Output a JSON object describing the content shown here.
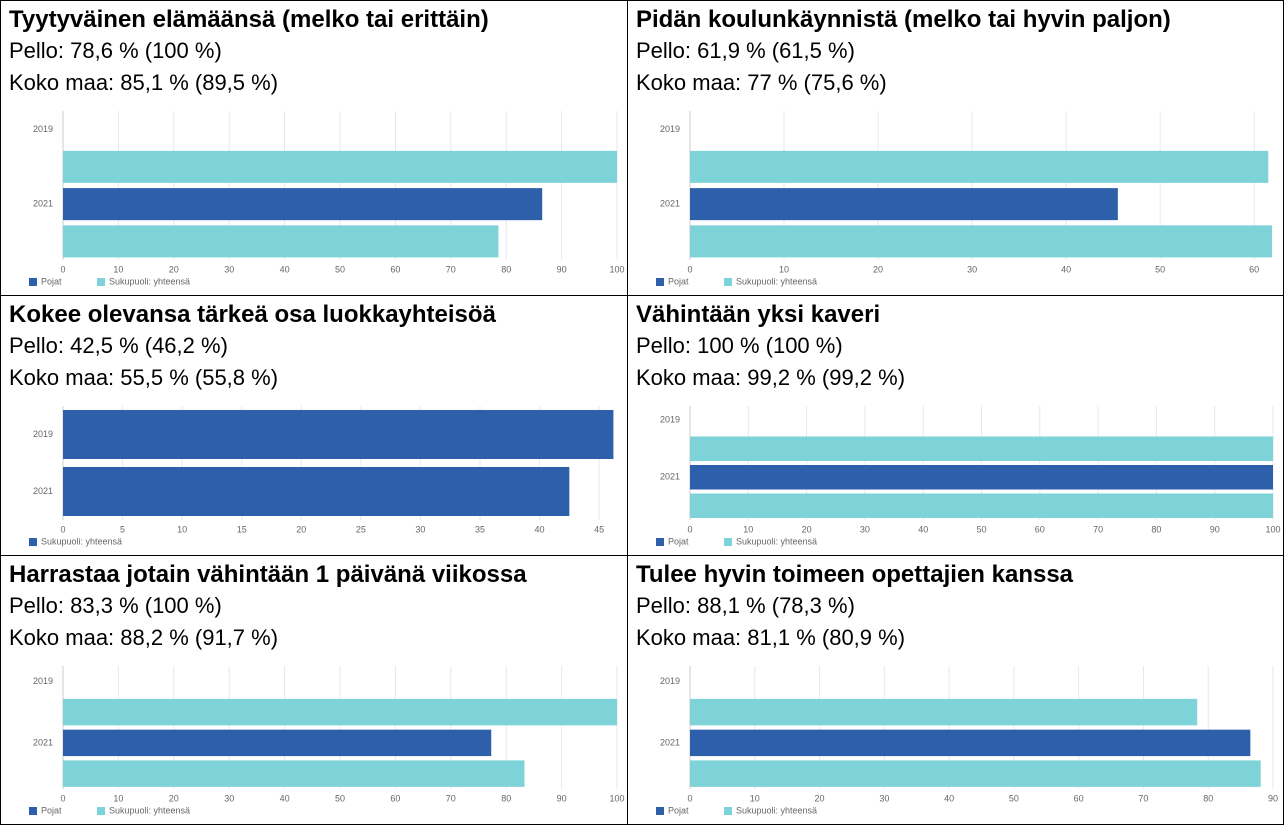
{
  "chart_data": [
    {
      "type": "bar",
      "orientation": "horizontal",
      "title": "Tyytyväinen elämäänsä (melko tai erittäin)",
      "lines": [
        "Pello: 78,6 % (100 %)",
        "Koko maa: 85,1 % (89,5 %)"
      ],
      "categories": [
        "2019",
        "2021"
      ],
      "series": [
        {
          "name": "Pojat",
          "color": "#2e5fab",
          "values": [
            null,
            86.5
          ]
        },
        {
          "name": "Sukupuoli: yhteensä",
          "color": "#7dd3d8",
          "values": [
            100,
            78.6
          ]
        }
      ],
      "xlim": [
        0,
        100
      ],
      "xticks": [
        0,
        10,
        20,
        30,
        40,
        50,
        60,
        70,
        80,
        90,
        100
      ],
      "grid": true
    },
    {
      "type": "bar",
      "orientation": "horizontal",
      "title": "Pidän koulunkäynnistä (melko tai hyvin paljon)",
      "lines": [
        "Pello: 61,9 % (61,5 %)",
        "Koko maa: 77 % (75,6 %)"
      ],
      "categories": [
        "2019",
        "2021"
      ],
      "series": [
        {
          "name": "Pojat",
          "color": "#2e5fab",
          "values": [
            null,
            45.5
          ]
        },
        {
          "name": "Sukupuoli: yhteensä",
          "color": "#7dd3d8",
          "values": [
            61.5,
            61.9
          ]
        }
      ],
      "xlim": [
        0,
        62
      ],
      "xticks": [
        0,
        10,
        20,
        30,
        40,
        50,
        60
      ],
      "grid": true
    },
    {
      "type": "bar",
      "orientation": "horizontal",
      "title": "Kokee olevansa tärkeä osa luokkayhteisöä",
      "lines": [
        "Pello: 42,5 % (46,2 %)",
        "Koko maa: 55,5 % (55,8 %)"
      ],
      "categories": [
        "2019",
        "2021"
      ],
      "series": [
        {
          "name": "Sukupuoli: yhteensä",
          "color": "#2e5fab",
          "values": [
            46.2,
            42.5
          ]
        }
      ],
      "xlim": [
        0,
        46.5
      ],
      "xticks": [
        0,
        5,
        10,
        15,
        20,
        25,
        30,
        35,
        40,
        45
      ],
      "grid": true
    },
    {
      "type": "bar",
      "orientation": "horizontal",
      "title": "Vähintään yksi kaveri",
      "lines": [
        "Pello: 100 % (100 %)",
        "Koko maa: 99,2 % (99,2 %)"
      ],
      "categories": [
        "2019",
        "2021"
      ],
      "series": [
        {
          "name": "Pojat",
          "color": "#2e5fab",
          "values": [
            null,
            100
          ]
        },
        {
          "name": "Sukupuoli: yhteensä",
          "color": "#7dd3d8",
          "values": [
            100,
            100
          ]
        }
      ],
      "xlim": [
        0,
        100
      ],
      "xticks": [
        0,
        10,
        20,
        30,
        40,
        50,
        60,
        70,
        80,
        90,
        100
      ],
      "grid": true
    },
    {
      "type": "bar",
      "orientation": "horizontal",
      "title": "Harrastaa jotain vähintään 1 päivänä viikossa",
      "lines": [
        "Pello: 83,3 % (100 %)",
        "Koko maa: 88,2 % (91,7 %)"
      ],
      "categories": [
        "2019",
        "2021"
      ],
      "series": [
        {
          "name": "Pojat",
          "color": "#2e5fab",
          "values": [
            null,
            77.3
          ]
        },
        {
          "name": "Sukupuoli: yhteensä",
          "color": "#7dd3d8",
          "values": [
            100,
            83.3
          ]
        }
      ],
      "xlim": [
        0,
        100
      ],
      "xticks": [
        0,
        10,
        20,
        30,
        40,
        50,
        60,
        70,
        80,
        90,
        100
      ],
      "grid": true
    },
    {
      "type": "bar",
      "orientation": "horizontal",
      "title": "Tulee hyvin toimeen opettajien kanssa",
      "lines": [
        "Pello: 88,1 % (78,3 %)",
        "Koko maa: 81,1 % (80,9 %)"
      ],
      "categories": [
        "2019",
        "2021"
      ],
      "series": [
        {
          "name": "Pojat",
          "color": "#2e5fab",
          "values": [
            null,
            86.5
          ]
        },
        {
          "name": "Sukupuoli: yhteensä",
          "color": "#7dd3d8",
          "values": [
            78.3,
            88.1
          ]
        }
      ],
      "xlim": [
        0,
        90
      ],
      "xticks": [
        0,
        10,
        20,
        30,
        40,
        50,
        60,
        70,
        80,
        90
      ],
      "grid": true
    }
  ]
}
